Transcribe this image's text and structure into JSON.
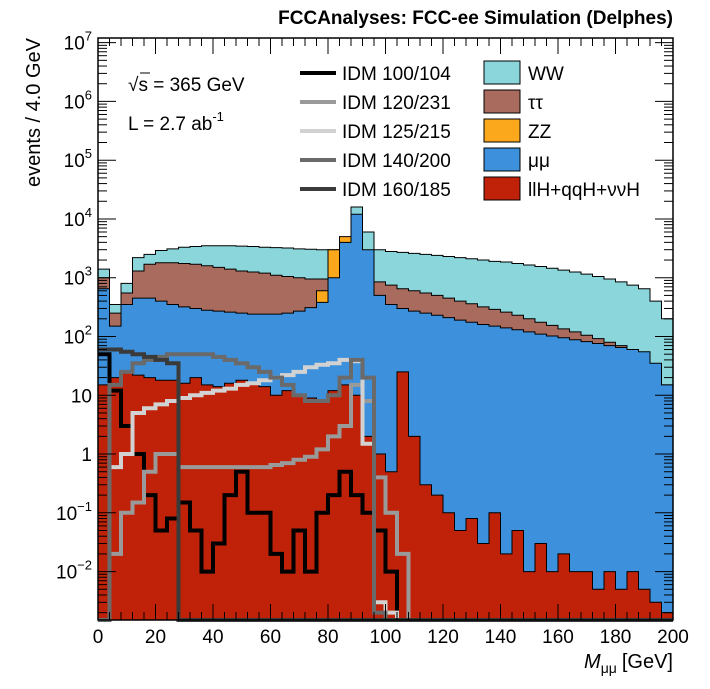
{
  "chart_data": {
    "type": "histogram",
    "title": "FCCAnalyses: FCC-ee Simulation (Delphes)",
    "xlabel": "M",
    "xlabel_subscript": "μμ",
    "xlabel_unit": "[GeV]",
    "ylabel": "events / 4.0 GeV",
    "yscale": "log",
    "xlim": [
      0,
      200
    ],
    "ylim": [
      0.0015,
      12000000
    ],
    "bin_width": 4,
    "x_ticks": [
      "0",
      "20",
      "40",
      "60",
      "80",
      "100",
      "120",
      "140",
      "160",
      "180",
      "200"
    ],
    "y_ticks": [
      {
        "base": "10",
        "exp": "7",
        "value": 10000000
      },
      {
        "base": "10",
        "exp": "6",
        "value": 1000000
      },
      {
        "base": "10",
        "exp": "5",
        "value": 100000
      },
      {
        "base": "10",
        "exp": "4",
        "value": 10000
      },
      {
        "base": "10",
        "exp": "3",
        "value": 1000
      },
      {
        "base": "10",
        "exp": "2",
        "value": 100
      },
      {
        "base": "10",
        "exp": "",
        "value": 10
      },
      {
        "base": "1",
        "exp": "",
        "value": 1
      },
      {
        "base": "10",
        "exp": "−1",
        "value": 0.1
      },
      {
        "base": "10",
        "exp": "−2",
        "value": 0.01
      }
    ],
    "annotations": {
      "sqrt_symbol": "√",
      "energy": "s = 365 GeV",
      "lumi_base": "L = 2.7 ab",
      "lumi_exp": "-1"
    },
    "stack_totals": [
      {
        "name": "WW",
        "color": "#8ad6db",
        "values": [
          1400,
          350,
          800,
          2200,
          2500,
          2900,
          3100,
          3300,
          3400,
          3500,
          3500,
          3500,
          3450,
          3400,
          3300,
          3250,
          3200,
          3100,
          3050,
          3000,
          3000,
          3500,
          16000,
          6000,
          3000,
          2800,
          2700,
          2600,
          2500,
          2400,
          2300,
          2200,
          2100,
          2000,
          1900,
          1850,
          1750,
          1650,
          1550,
          1450,
          1350,
          1250,
          1150,
          1050,
          950,
          850,
          750,
          650,
          400,
          200
        ]
      },
      {
        "name": "ττ",
        "color": "#a86b5d",
        "values": [
          1000,
          250,
          550,
          1300,
          1700,
          1800,
          1800,
          1750,
          1700,
          1600,
          1500,
          1400,
          1300,
          1250,
          1200,
          1100,
          1050,
          1000,
          950,
          950,
          1000,
          1400,
          8000,
          2600,
          850,
          750,
          650,
          600,
          550,
          500,
          450,
          400,
          360,
          320,
          290,
          260,
          230,
          200,
          175,
          155,
          135,
          120,
          105,
          92,
          80,
          70,
          60,
          50,
          32,
          15
        ]
      },
      {
        "name": "ZZ",
        "color": "#fca81c",
        "values": [
          18,
          20,
          40,
          50,
          45,
          40,
          38,
          36,
          36,
          38,
          40,
          45,
          50,
          58,
          70,
          85,
          110,
          160,
          250,
          600,
          3000,
          5000,
          2000,
          150,
          70,
          50,
          40,
          32,
          26,
          22,
          19,
          16,
          14,
          12,
          10.5,
          9,
          8,
          7,
          6,
          5.2,
          4.5,
          3.9,
          3.3,
          2.8,
          2.4,
          2,
          1.7,
          1.4,
          0.9,
          0.4
        ]
      },
      {
        "name": "μμ",
        "color": "#3c90dc",
        "values": [
          650,
          150,
          350,
          450,
          450,
          400,
          350,
          320,
          300,
          280,
          270,
          260,
          250,
          240,
          240,
          240,
          250,
          270,
          310,
          380,
          1000,
          4000,
          12000,
          3000,
          500,
          350,
          300,
          270,
          250,
          230,
          210,
          190,
          175,
          160,
          150,
          140,
          130,
          120,
          110,
          102,
          95,
          88,
          82,
          76,
          70,
          65,
          60,
          55,
          35,
          15
        ]
      },
      {
        "name": "llH+qqH+ννH",
        "color": "#bf2208",
        "values": [
          15,
          20,
          25,
          22,
          20,
          18,
          18,
          16,
          20,
          15,
          14,
          16,
          18,
          16,
          14,
          10,
          12,
          10,
          9,
          8,
          12,
          15,
          10,
          2,
          1,
          0.5,
          25,
          2,
          0.3,
          0.2,
          0.1,
          0.05,
          0.08,
          0.03,
          0.1,
          0.02,
          0.05,
          0.01,
          0.03,
          0.01,
          0.02,
          0.01,
          0.01,
          0.005,
          0.01,
          0.005,
          0.01,
          0.005,
          0.003,
          0.002
        ]
      }
    ],
    "signals": [
      {
        "name": "IDM 100/104",
        "color": "#000000",
        "width": 4,
        "values": [
          50,
          12,
          3,
          1,
          0.2,
          0.05,
          0.08,
          0.15,
          0.05,
          0.01,
          0.03,
          0.2,
          0.5,
          0.1,
          0.1,
          0.02,
          0.01,
          0.05,
          0.01,
          0.1,
          0.2,
          0.5,
          0.2,
          0.1,
          0.05,
          0.01,
          0,
          0,
          0,
          0,
          0,
          0,
          0,
          0,
          0,
          0,
          0,
          0,
          0,
          0,
          0,
          0,
          0,
          0,
          0,
          0,
          0,
          0,
          0,
          0
        ]
      },
      {
        "name": "IDM 120/231",
        "color": "#9a9a9a",
        "width": 4,
        "values": [
          0,
          0.02,
          0.1,
          0.15,
          0.5,
          1,
          1,
          0.6,
          0.6,
          0.6,
          0.6,
          0.6,
          0.6,
          0.6,
          0.6,
          0.65,
          0.7,
          0.8,
          0.9,
          1.2,
          2,
          3,
          15,
          8,
          0.4,
          0.1,
          0.02,
          0,
          0,
          0,
          0,
          0,
          0,
          0,
          0,
          0,
          0,
          0,
          0,
          0,
          0,
          0,
          0,
          0,
          0,
          0,
          0,
          0,
          0,
          0
        ]
      },
      {
        "name": "IDM 125/215",
        "color": "#d2d2d2",
        "width": 4,
        "values": [
          0,
          0.6,
          1,
          5,
          6,
          7,
          8,
          9,
          10,
          11,
          12,
          13,
          15,
          16,
          18,
          20,
          22,
          25,
          30,
          33,
          35,
          40,
          38,
          1.5,
          0.003,
          0.002,
          0,
          0,
          0,
          0,
          0,
          0,
          0,
          0,
          0,
          0,
          0,
          0,
          0,
          0,
          0,
          0,
          0,
          0,
          0,
          0,
          0,
          0,
          0,
          0
        ]
      },
      {
        "name": "IDM 140/200",
        "color": "#6a6a6a",
        "width": 4,
        "values": [
          0,
          15,
          25,
          35,
          40,
          45,
          50,
          50,
          50,
          50,
          45,
          40,
          35,
          30,
          25,
          20,
          15,
          10,
          8,
          8,
          10,
          20,
          40,
          20,
          0.002,
          0,
          0,
          0,
          0,
          0,
          0,
          0,
          0,
          0,
          0,
          0,
          0,
          0,
          0,
          0,
          0,
          0,
          0,
          0,
          0,
          0,
          0,
          0,
          0,
          0
        ]
      },
      {
        "name": "IDM 160/185",
        "color": "#3a3a3a",
        "width": 4,
        "values": [
          60,
          60,
          55,
          50,
          45,
          40,
          35,
          0,
          0,
          0,
          0,
          0,
          0,
          0,
          0,
          0,
          0,
          0,
          0,
          0,
          0,
          0,
          0,
          0,
          0,
          0,
          0,
          0,
          0,
          0,
          0,
          0,
          0,
          0,
          0,
          0,
          0,
          0,
          0,
          0,
          0,
          0,
          0,
          0,
          0,
          0,
          0,
          0,
          0,
          0
        ]
      }
    ],
    "legend_signals": [
      "IDM 100/104",
      "IDM 120/231",
      "IDM 125/215",
      "IDM 140/200",
      "IDM 160/185"
    ],
    "legend_backgrounds": [
      {
        "label": "WW",
        "color": "#8ad6db"
      },
      {
        "label": "ττ",
        "color": "#a86b5d"
      },
      {
        "label": "ZZ",
        "color": "#fca81c"
      },
      {
        "label": "μμ",
        "color": "#3c90dc"
      },
      {
        "label": "llH+qqH+ννH",
        "color": "#bf2208"
      }
    ]
  }
}
